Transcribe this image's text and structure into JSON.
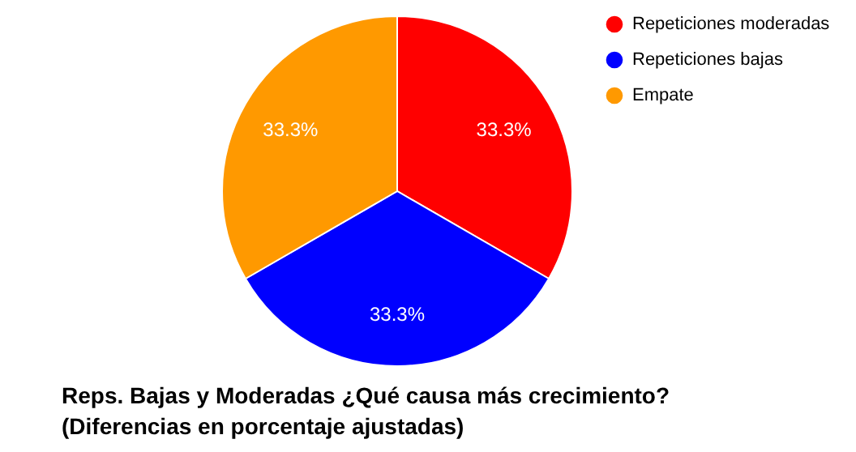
{
  "chart_data": {
    "type": "pie",
    "title": [
      "Reps. Bajas y Moderadas ¿Qué causa más crecimiento?",
      "(Diferencias en porcentaje ajustadas)"
    ],
    "categories": [
      "Repeticiones moderadas",
      "Repeticiones bajas",
      "Empate"
    ],
    "values": [
      33.3,
      33.3,
      33.3
    ],
    "colors": [
      "#ff0000",
      "#0000ff",
      "#ff9900"
    ],
    "value_labels": [
      "33.3%",
      "33.3%",
      "33.3%"
    ],
    "legend": "top right"
  }
}
